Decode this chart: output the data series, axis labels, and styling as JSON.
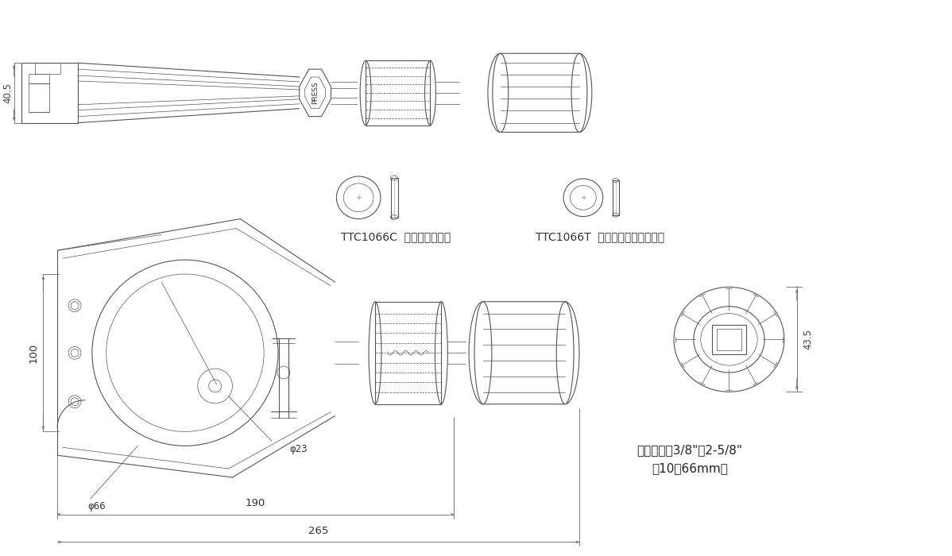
{
  "bg_color": "#ffffff",
  "line_color": "#555555",
  "dim_color": "#666666",
  "text_color": "#333333",
  "fig_width": 11.98,
  "fig_height": 7.0,
  "label_40_5": "40.5",
  "label_100": "100",
  "label_190": "190",
  "label_265": "265",
  "label_phi66": "φ66",
  "label_phi23": "φ23",
  "label_43_5": "43.5",
  "label_ttc1066c": "TTC1066C  クロムメッキ刀",
  "label_ttc1066t": "TTC1066T  チタンコーティング刀",
  "label_cutting": "切断能力：3/8\"～2-5/8\"",
  "label_cutting2": "（10～66mm）",
  "label_press": "PRESS"
}
